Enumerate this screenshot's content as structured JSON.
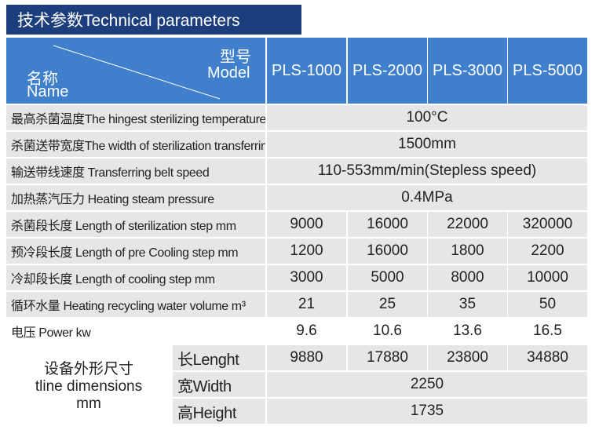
{
  "header": {
    "title": "技术参数Technical parameters"
  },
  "table": {
    "corner": {
      "top_zh": "型号",
      "top_en": "Model",
      "bottom_zh": "名称",
      "bottom_en": "Name"
    },
    "columns": [
      "PLS-1000",
      "PLS-2000",
      "PLS-3000",
      "PLS-5000"
    ],
    "rows": [
      {
        "label": "最高杀菌温度The hingest sterilizing temperature",
        "value": "100°C"
      },
      {
        "label": "杀菌送带宽度The width of sterilization transferring belt",
        "value": "1500mm"
      },
      {
        "label": "输送带线速度 Transferring belt speed",
        "value": "110-553mm/min(Stepless speed)"
      },
      {
        "label": "加热蒸汽压力 Heating steam pressure",
        "value": "0.4MPa"
      },
      {
        "label": "杀菌段长度 Length of sterilization step mm",
        "values": [
          "9000",
          "16000",
          "22000",
          "320000"
        ]
      },
      {
        "label": "预冷段长度 Length of pre Cooling step mm",
        "values": [
          "1200",
          "16000",
          "1800",
          "2200"
        ]
      },
      {
        "label": "冷却段长度 Length of cooling step mm",
        "values": [
          "3000",
          "5000",
          "8000",
          "10000"
        ]
      },
      {
        "label": "循环水量 Heating recycling water volume m³",
        "values": [
          "21",
          "25",
          "35",
          "50"
        ]
      },
      {
        "label": "电压 Power kw",
        "values": [
          "9.6",
          "10.6",
          "13.6",
          "16.5"
        ]
      }
    ],
    "dimensions": {
      "label_lines": [
        "设备外形尺寸",
        "tline dimensions",
        "mm"
      ],
      "rows": [
        {
          "label": "长Lenght",
          "values": [
            "9880",
            "17880",
            "23800",
            "34880"
          ]
        },
        {
          "label": "宽Width",
          "value": "2250"
        },
        {
          "label": "高Height",
          "value": "1735"
        }
      ]
    }
  }
}
